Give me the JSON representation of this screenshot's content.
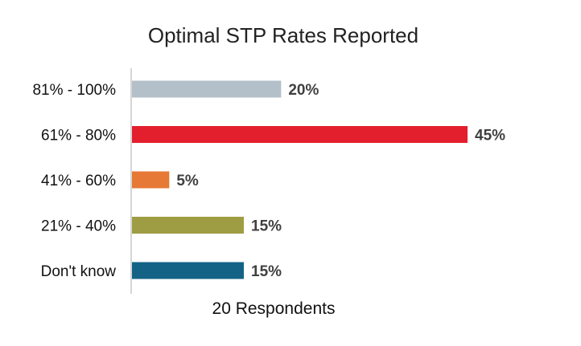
{
  "chart_data": {
    "type": "bar",
    "orientation": "horizontal",
    "title": "Optimal STP Rates Reported",
    "xlabel": "20 Respondents",
    "ylabel": "",
    "categories": [
      "81% - 100%",
      "61% - 80%",
      "41% - 60%",
      "21% - 40%",
      "Don't know"
    ],
    "values": [
      20,
      45,
      5,
      15,
      15
    ],
    "data_labels": [
      "20%",
      "45%",
      "5%",
      "15%",
      "15%"
    ],
    "colors": [
      "#b3bfc9",
      "#e41f2d",
      "#e67935",
      "#9f9d44",
      "#146386"
    ],
    "xlim": [
      0,
      50
    ],
    "value_unit": "%",
    "grid": false,
    "legend": "none"
  }
}
